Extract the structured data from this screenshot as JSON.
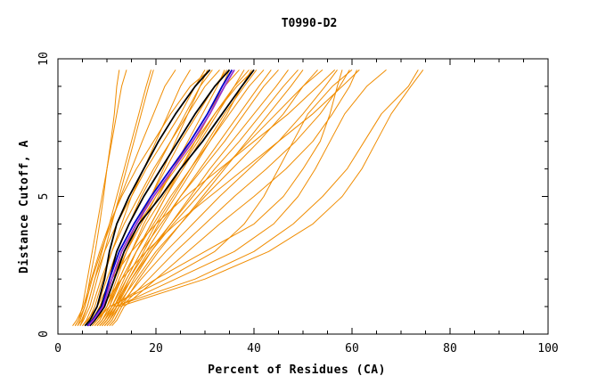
{
  "chart_data": {
    "type": "line",
    "title": "T0990-D2",
    "xlabel": "Percent of Residues (CA)",
    "ylabel": "Distance Cutoff, A",
    "xlim": [
      0,
      100
    ],
    "ylim": [
      0,
      10
    ],
    "x_ticks": [
      "0",
      "20",
      "40",
      "60",
      "80",
      "100"
    ],
    "y_ticks": [
      "0",
      "5",
      "10"
    ],
    "grid": false,
    "colors": {
      "orange": "#f08c00",
      "black": "#000000",
      "blue": "#0000cc",
      "purple": "#9933cc"
    },
    "cutoff_levels": [
      0.3,
      0.5,
      1.0,
      2.0,
      3.0,
      4.0,
      5.0,
      6.0,
      7.0,
      8.0,
      9.0,
      9.6
    ],
    "series": [
      {
        "color": "orange",
        "x": [
          3.0,
          3.8,
          5.2,
          6.8,
          8.5,
          10.5,
          13.0,
          16.0,
          19.5,
          23.0,
          27.0,
          31.0
        ]
      },
      {
        "color": "orange",
        "x": [
          3.5,
          4.2,
          5.5,
          7.0,
          8.8,
          10.8,
          12.8,
          15.0,
          17.2,
          19.5,
          21.8,
          24.0
        ]
      },
      {
        "color": "orange",
        "x": [
          4.0,
          4.5,
          5.5,
          6.5,
          7.6,
          8.5,
          9.3,
          10.0,
          10.8,
          11.5,
          12.0,
          12.5
        ]
      },
      {
        "color": "orange",
        "x": [
          4.5,
          5.2,
          6.5,
          8.0,
          9.5,
          11.0,
          12.5,
          14.0,
          15.5,
          17.0,
          18.5,
          19.5
        ]
      },
      {
        "color": "orange",
        "x": [
          5.5,
          6.2,
          7.5,
          9.2,
          11.0,
          13.0,
          15.0,
          17.5,
          20.0,
          22.5,
          25.0,
          27.0
        ]
      },
      {
        "color": "orange",
        "x": [
          6.0,
          6.8,
          8.0,
          10.0,
          12.0,
          14.5,
          17.0,
          20.0,
          23.0,
          26.0,
          29.0,
          31.5
        ]
      },
      {
        "color": "orange",
        "x": [
          6.5,
          7.5,
          9.0,
          11.0,
          13.5,
          16.0,
          19.0,
          22.0,
          25.0,
          28.5,
          32.0,
          34.5
        ]
      },
      {
        "color": "orange",
        "x": [
          7.0,
          8.0,
          9.5,
          11.5,
          14.0,
          17.0,
          20.0,
          23.5,
          27.0,
          30.5,
          34.0,
          37.0
        ]
      },
      {
        "color": "orange",
        "x": [
          7.5,
          8.5,
          10.0,
          12.5,
          15.0,
          18.0,
          21.5,
          25.0,
          28.5,
          32.0,
          36.0,
          39.0
        ]
      },
      {
        "color": "orange",
        "x": [
          8.0,
          9.0,
          10.5,
          13.0,
          16.0,
          19.5,
          23.0,
          27.0,
          31.0,
          35.0,
          39.0,
          42.0
        ]
      },
      {
        "color": "orange",
        "x": [
          8.5,
          9.5,
          11.0,
          14.0,
          17.0,
          21.0,
          25.0,
          29.5,
          34.0,
          38.0,
          42.0,
          45.0
        ]
      },
      {
        "color": "orange",
        "x": [
          9.0,
          10.0,
          11.5,
          15.0,
          18.5,
          23.0,
          27.5,
          32.0,
          37.0,
          41.5,
          46.0,
          49.0
        ]
      },
      {
        "color": "orange",
        "x": [
          9.5,
          10.5,
          12.0,
          16.0,
          20.0,
          25.0,
          30.0,
          35.5,
          41.0,
          46.0,
          50.0,
          53.0
        ]
      },
      {
        "color": "orange",
        "x": [
          10.0,
          11.0,
          12.5,
          17.0,
          22.0,
          27.5,
          33.0,
          39.0,
          45.0,
          50.0,
          54.5,
          57.0
        ]
      },
      {
        "color": "orange",
        "x": [
          10.5,
          11.5,
          13.0,
          18.5,
          24.0,
          30.0,
          36.0,
          42.5,
          48.5,
          53.5,
          57.5,
          59.5
        ]
      },
      {
        "color": "orange",
        "x": [
          11.0,
          12.0,
          13.5,
          20.0,
          26.5,
          33.0,
          40.0,
          46.5,
          52.0,
          56.0,
          59.5,
          61.0
        ]
      },
      {
        "color": "orange",
        "x": [
          8.0,
          9.0,
          11.0,
          20.0,
          30.0,
          40.0,
          46.0,
          50.0,
          53.5,
          55.5,
          57.0,
          58.0
        ]
      },
      {
        "color": "orange",
        "x": [
          9.0,
          10.0,
          12.0,
          24.0,
          36.0,
          44.0,
          49.0,
          52.5,
          55.5,
          58.5,
          63.0,
          67.0
        ]
      },
      {
        "color": "orange",
        "x": [
          8.5,
          9.5,
          11.5,
          28.0,
          40.0,
          48.0,
          54.0,
          59.0,
          62.5,
          66.0,
          71.5,
          73.5
        ]
      },
      {
        "color": "orange",
        "x": [
          9.5,
          10.5,
          12.5,
          30.0,
          43.0,
          52.0,
          58.0,
          62.0,
          65.0,
          68.0,
          72.0,
          74.5
        ]
      },
      {
        "color": "orange",
        "x": [
          7.0,
          8.0,
          10.5,
          22.0,
          32.0,
          38.0,
          42.0,
          45.0,
          48.0,
          51.0,
          56.0,
          60.0
        ]
      },
      {
        "color": "orange",
        "x": [
          6.0,
          7.0,
          9.0,
          13.0,
          18.0,
          24.0,
          31.0,
          38.0,
          45.0,
          52.0,
          58.0,
          61.5
        ]
      },
      {
        "color": "orange",
        "x": [
          5.0,
          6.0,
          8.0,
          11.0,
          15.0,
          20.0,
          26.0,
          33.0,
          40.0,
          47.0,
          53.0,
          56.5
        ]
      },
      {
        "color": "orange",
        "x": [
          7.5,
          8.5,
          10.0,
          12.0,
          14.0,
          16.5,
          19.0,
          21.5,
          24.0,
          26.5,
          29.0,
          30.5
        ]
      },
      {
        "color": "orange",
        "x": [
          8.0,
          9.0,
          10.5,
          12.5,
          15.0,
          17.5,
          20.5,
          23.5,
          26.5,
          29.5,
          32.5,
          34.0
        ]
      },
      {
        "color": "orange",
        "x": [
          8.5,
          9.5,
          11.0,
          13.5,
          16.0,
          19.0,
          22.0,
          25.5,
          29.0,
          32.5,
          36.0,
          38.0
        ]
      },
      {
        "color": "orange",
        "x": [
          9.0,
          10.0,
          11.5,
          14.0,
          17.0,
          20.0,
          23.5,
          27.0,
          30.5,
          34.0,
          38.0,
          40.5
        ]
      },
      {
        "color": "orange",
        "x": [
          9.5,
          10.5,
          12.0,
          14.5,
          18.0,
          21.5,
          25.0,
          29.0,
          33.0,
          37.0,
          41.0,
          43.5
        ]
      },
      {
        "color": "orange",
        "x": [
          10.0,
          11.0,
          12.5,
          15.5,
          19.0,
          23.0,
          27.0,
          31.0,
          35.5,
          40.0,
          44.5,
          47.0
        ]
      },
      {
        "color": "orange",
        "x": [
          10.5,
          11.5,
          13.0,
          16.5,
          20.5,
          25.0,
          29.5,
          34.0,
          38.5,
          43.0,
          47.5,
          50.0
        ]
      },
      {
        "color": "orange",
        "x": [
          4.0,
          4.8,
          6.0,
          7.5,
          9.5,
          12.0,
          15.0,
          18.0,
          21.5,
          25.0,
          28.0,
          30.0
        ]
      },
      {
        "color": "orange",
        "x": [
          5.0,
          5.8,
          7.0,
          8.8,
          11.0,
          13.5,
          16.5,
          19.5,
          23.0,
          26.5,
          30.0,
          33.0
        ]
      },
      {
        "color": "orange",
        "x": [
          3.5,
          4.2,
          5.0,
          6.0,
          7.0,
          8.0,
          9.0,
          10.0,
          11.0,
          12.0,
          13.0,
          14.0
        ]
      },
      {
        "color": "orange",
        "x": [
          4.5,
          5.0,
          6.0,
          7.5,
          9.0,
          10.5,
          12.0,
          13.5,
          15.0,
          16.5,
          18.0,
          19.0
        ]
      },
      {
        "color": "orange",
        "x": [
          7.0,
          8.0,
          10.0,
          13.0,
          16.0,
          19.0,
          22.0,
          25.0,
          28.0,
          31.0,
          33.5,
          35.0
        ]
      },
      {
        "color": "orange",
        "x": [
          8.5,
          9.5,
          11.5,
          14.5,
          17.5,
          20.5,
          24.0,
          27.5,
          31.0,
          34.5,
          37.5,
          39.5
        ]
      },
      {
        "color": "orange",
        "x": [
          6.0,
          7.0,
          8.5,
          11.0,
          13.5,
          16.5,
          20.0,
          24.0,
          28.0,
          32.0,
          36.5,
          40.0
        ]
      },
      {
        "color": "orange",
        "x": [
          9.0,
          10.0,
          12.0,
          15.0,
          19.0,
          23.5,
          28.5,
          33.5,
          39.0,
          44.5,
          50.0,
          54.0
        ]
      },
      {
        "color": "black",
        "x": [
          5.5,
          6.5,
          8.0,
          9.5,
          10.5,
          12.0,
          14.5,
          17.5,
          20.5,
          24.0,
          28.0,
          31.0
        ]
      },
      {
        "color": "black",
        "x": [
          6.0,
          7.0,
          8.8,
          10.5,
          12.0,
          14.5,
          17.5,
          21.0,
          24.5,
          28.0,
          32.0,
          35.0
        ]
      },
      {
        "color": "black",
        "x": [
          6.5,
          7.5,
          9.5,
          11.5,
          13.5,
          16.5,
          21.0,
          25.0,
          29.5,
          33.5,
          37.5,
          40.0
        ]
      },
      {
        "color": "blue",
        "x": [
          6.0,
          7.0,
          9.0,
          10.5,
          12.5,
          15.5,
          19.0,
          23.0,
          27.0,
          30.5,
          33.5,
          35.5
        ]
      },
      {
        "color": "purple",
        "x": [
          6.2,
          7.2,
          9.2,
          11.0,
          13.0,
          16.0,
          19.5,
          23.5,
          27.5,
          31.0,
          34.0,
          36.0
        ]
      }
    ]
  }
}
